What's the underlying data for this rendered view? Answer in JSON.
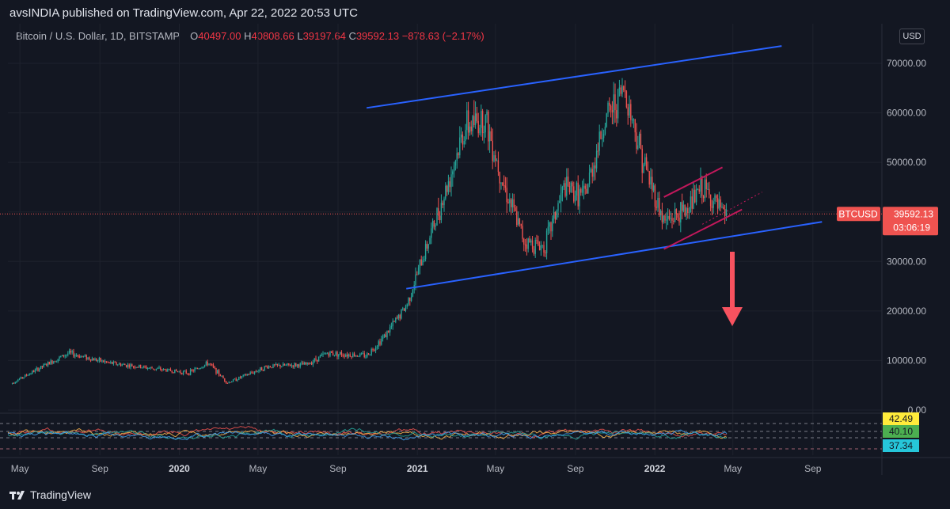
{
  "header": {
    "publisher_line": "avsINDIA published on TradingView.com, Apr 22, 2022 20:53 UTC"
  },
  "legend": {
    "symbol_text": "Bitcoin / U.S. Dollar, 1D, BITSTAMP",
    "o_label": "O",
    "o_value": "40497.00",
    "h_label": "H",
    "h_value": "40808.66",
    "l_label": "L",
    "l_value": "39197.64",
    "c_label": "C",
    "c_value": "39592.13",
    "change": "−878.63 (−2.17%)"
  },
  "price_scale": {
    "currency": "USD",
    "labels": [
      "70000.00",
      "60000.00",
      "50000.00",
      "40000.00",
      "30000.00",
      "20000.00",
      "10000.00",
      "0.00"
    ]
  },
  "last_price": {
    "symbol": "BTCUSD",
    "value": "39592.13",
    "countdown": "03:06:19",
    "color": "#f23645"
  },
  "indicator": {
    "labels": [
      "42.49",
      "40.10",
      "37.34"
    ],
    "colors": [
      "#ffeb3b",
      "#4caf50",
      "#26c6da"
    ]
  },
  "time_axis": [
    "May",
    "Sep",
    "2020",
    "May",
    "Sep",
    "2021",
    "May",
    "Sep",
    "2022",
    "May",
    "Sep"
  ],
  "footer": {
    "brand": "TradingView"
  },
  "colors": {
    "background": "#131722",
    "up": "#26a69a",
    "down": "#ef5350",
    "channel_line": "#2962ff",
    "wedge_line": "#c2185b",
    "arrow": "#f7525f"
  },
  "chart_data": {
    "type": "line",
    "title": "Bitcoin / U.S. Dollar, 1D, BITSTAMP",
    "xlabel": "",
    "ylabel": "",
    "ylim": [
      0,
      74000
    ],
    "x": [
      "2019-04",
      "2019-06",
      "2019-07",
      "2019-09",
      "2019-11",
      "2020-01",
      "2020-02",
      "2020-03",
      "2020-05",
      "2020-07",
      "2020-08",
      "2020-10",
      "2020-11",
      "2020-12",
      "2021-01",
      "2021-02",
      "2021-03",
      "2021-04",
      "2021-05",
      "2021-06",
      "2021-07",
      "2021-08",
      "2021-09",
      "2021-10",
      "2021-11",
      "2021-12",
      "2022-01",
      "2022-02",
      "2022-03",
      "2022-04"
    ],
    "series": [
      {
        "values": [
          5200,
          9500,
          11500,
          9500,
          8500,
          7500,
          9500,
          5500,
          8800,
          9200,
          11500,
          11000,
          15500,
          21000,
          33000,
          45000,
          57000,
          59000,
          45000,
          34000,
          33000,
          45000,
          43000,
          58000,
          65000,
          50000,
          38000,
          40000,
          45000,
          39592
        ]
      }
    ],
    "annotations": {
      "upper_channel": {
        "start": [
          "2020-10",
          61000
        ],
        "end": [
          "2022-07",
          73500
        ]
      },
      "lower_channel": {
        "start": [
          "2020-12",
          24500
        ],
        "end": [
          "2022-09",
          38000
        ]
      },
      "wedge_upper": {
        "start": [
          "2022-01",
          43000
        ],
        "end": [
          "2022-04",
          49000
        ]
      },
      "wedge_lower": {
        "start": [
          "2022-01",
          32500
        ],
        "end": [
          "2022-05",
          40500
        ]
      },
      "dotted_trend": {
        "start": [
          "2022-03",
          37500
        ],
        "end": [
          "2022-06",
          44000
        ]
      }
    },
    "grid": true
  }
}
